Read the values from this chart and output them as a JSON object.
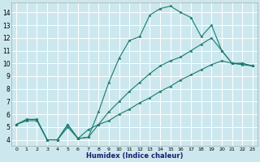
{
  "xlabel": "Humidex (Indice chaleur)",
  "bg_color": "#cce8ee",
  "grid_color": "#ffffff",
  "line_color": "#1a7a6e",
  "xlim": [
    -0.5,
    23.5
  ],
  "ylim": [
    3.5,
    14.8
  ],
  "yticks": [
    4,
    5,
    6,
    7,
    8,
    9,
    10,
    11,
    12,
    13,
    14
  ],
  "xticks": [
    0,
    1,
    2,
    3,
    4,
    5,
    6,
    7,
    8,
    9,
    10,
    11,
    12,
    13,
    14,
    15,
    16,
    17,
    18,
    19,
    20,
    21,
    22,
    23
  ],
  "series": [
    {
      "x": [
        0,
        1,
        2,
        3,
        4,
        5,
        6,
        7,
        8,
        9,
        10,
        11,
        12,
        13,
        14,
        15,
        16,
        17,
        18,
        19,
        20,
        21,
        22,
        23
      ],
      "y": [
        5.2,
        5.6,
        5.6,
        4.0,
        4.0,
        5.2,
        4.1,
        4.2,
        6.2,
        8.5,
        10.4,
        11.8,
        12.1,
        13.8,
        14.3,
        14.5,
        14.0,
        13.6,
        12.1,
        13.0,
        11.0,
        10.0,
        10.0,
        9.8
      ]
    },
    {
      "x": [
        0,
        1,
        2,
        3,
        4,
        5,
        6,
        7,
        8,
        9,
        10,
        11,
        12,
        13,
        14,
        15,
        16,
        17,
        18,
        19,
        20,
        21,
        22,
        23
      ],
      "y": [
        5.2,
        5.6,
        5.6,
        4.0,
        4.0,
        5.2,
        4.1,
        4.2,
        5.2,
        6.2,
        7.0,
        7.8,
        8.5,
        9.2,
        9.8,
        10.2,
        10.5,
        11.0,
        11.5,
        12.0,
        11.0,
        10.0,
        10.0,
        9.8
      ]
    },
    {
      "x": [
        0,
        1,
        2,
        3,
        4,
        5,
        6,
        7,
        8,
        9,
        10,
        11,
        12,
        13,
        14,
        15,
        16,
        17,
        18,
        19,
        20,
        21,
        22,
        23
      ],
      "y": [
        5.2,
        5.5,
        5.5,
        4.0,
        4.0,
        5.0,
        4.1,
        4.8,
        5.2,
        5.5,
        6.0,
        6.4,
        6.9,
        7.3,
        7.8,
        8.2,
        8.7,
        9.1,
        9.5,
        9.9,
        10.2,
        10.0,
        9.9,
        9.8
      ]
    }
  ]
}
